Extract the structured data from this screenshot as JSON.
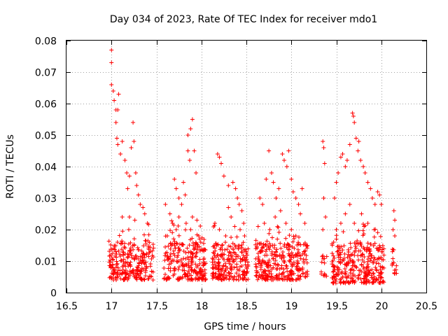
{
  "chart_data": {
    "type": "scatter",
    "title": "Day 034 of 2023, Rate Of TEC Index for receiver mdo1",
    "xlabel": "GPS time / hours",
    "ylabel": "ROTI / TECUs",
    "xlim": [
      16.5,
      20.5
    ],
    "ylim": [
      0,
      0.08
    ],
    "xticks": [
      "16.5",
      "17",
      "17.5",
      "18",
      "18.5",
      "19",
      "19.5",
      "20",
      "20.5"
    ],
    "xtick_values": [
      16.5,
      17,
      17.5,
      18,
      18.5,
      19,
      19.5,
      20,
      20.5
    ],
    "yticks": [
      "0",
      "0.01",
      "0.02",
      "0.03",
      "0.04",
      "0.05",
      "0.06",
      "0.07",
      "0.08"
    ],
    "ytick_values": [
      0,
      0.01,
      0.02,
      0.03,
      0.04,
      0.05,
      0.06,
      0.07,
      0.08
    ],
    "grid": true,
    "marker": "+",
    "color": "#ff0000",
    "series": [
      {
        "name": "ROTI",
        "clusters": [
          {
            "x_range": [
              16.97,
              17.47
            ],
            "baseline": [
              0.004,
              0.016
            ],
            "count": 260,
            "upper": [
              [
                17.0,
                0.077
              ],
              [
                17.0,
                0.073
              ],
              [
                17.0,
                0.066
              ],
              [
                17.02,
                0.064
              ],
              [
                17.03,
                0.061
              ],
              [
                17.05,
                0.058
              ],
              [
                17.07,
                0.058
              ],
              [
                17.05,
                0.054
              ],
              [
                17.08,
                0.063
              ],
              [
                17.06,
                0.049
              ],
              [
                17.07,
                0.047
              ],
              [
                17.1,
                0.044
              ],
              [
                17.12,
                0.048
              ],
              [
                17.15,
                0.042
              ],
              [
                17.17,
                0.038
              ],
              [
                17.2,
                0.037
              ],
              [
                17.18,
                0.033
              ],
              [
                17.22,
                0.046
              ],
              [
                17.24,
                0.054
              ],
              [
                17.25,
                0.048
              ],
              [
                17.27,
                0.038
              ],
              [
                17.28,
                0.034
              ],
              [
                17.3,
                0.031
              ],
              [
                17.32,
                0.028
              ],
              [
                17.35,
                0.027
              ],
              [
                17.37,
                0.025
              ],
              [
                17.4,
                0.022
              ],
              [
                17.12,
                0.024
              ],
              [
                17.2,
                0.024
              ],
              [
                17.26,
                0.023
              ]
            ]
          },
          {
            "x_range": [
              17.58,
              18.05
            ],
            "baseline": [
              0.004,
              0.016
            ],
            "count": 240,
            "upper": [
              [
                17.6,
                0.028
              ],
              [
                17.65,
                0.025
              ],
              [
                17.7,
                0.036
              ],
              [
                17.72,
                0.033
              ],
              [
                17.75,
                0.03
              ],
              [
                17.78,
                0.028
              ],
              [
                17.82,
                0.031
              ],
              [
                17.85,
                0.05
              ],
              [
                17.88,
                0.052
              ],
              [
                17.9,
                0.055
              ],
              [
                17.85,
                0.045
              ],
              [
                17.87,
                0.042
              ],
              [
                17.92,
                0.045
              ],
              [
                17.94,
                0.038
              ],
              [
                17.8,
                0.035
              ],
              [
                17.83,
                0.022
              ],
              [
                17.88,
                0.02
              ],
              [
                17.9,
                0.024
              ],
              [
                17.95,
                0.023
              ],
              [
                17.97,
                0.018
              ],
              [
                17.75,
                0.024
              ],
              [
                17.72,
                0.02
              ],
              [
                17.68,
                0.022
              ],
              [
                17.62,
                0.018
              ],
              [
                17.98,
                0.017
              ]
            ]
          },
          {
            "x_range": [
              18.12,
              18.52
            ],
            "baseline": [
              0.004,
              0.016
            ],
            "count": 220,
            "upper": [
              [
                18.18,
                0.044
              ],
              [
                18.2,
                0.043
              ],
              [
                18.22,
                0.041
              ],
              [
                18.25,
                0.037
              ],
              [
                18.3,
                0.034
              ],
              [
                18.35,
                0.035
              ],
              [
                18.38,
                0.033
              ],
              [
                18.4,
                0.03
              ],
              [
                18.42,
                0.028
              ],
              [
                18.45,
                0.026
              ],
              [
                18.47,
                0.022
              ],
              [
                18.15,
                0.022
              ],
              [
                18.2,
                0.02
              ],
              [
                18.3,
                0.027
              ],
              [
                18.33,
                0.024
              ],
              [
                18.37,
                0.021
              ],
              [
                18.43,
                0.02
              ],
              [
                18.27,
                0.018
              ],
              [
                18.48,
                0.018
              ]
            ]
          },
          {
            "x_range": [
              18.6,
              19.18
            ],
            "baseline": [
              0.004,
              0.016
            ],
            "count": 300,
            "upper": [
              [
                18.65,
                0.03
              ],
              [
                18.68,
                0.028
              ],
              [
                18.72,
                0.036
              ],
              [
                18.75,
                0.045
              ],
              [
                18.78,
                0.038
              ],
              [
                18.8,
                0.035
              ],
              [
                18.83,
                0.03
              ],
              [
                18.86,
                0.033
              ],
              [
                18.9,
                0.044
              ],
              [
                18.92,
                0.042
              ],
              [
                18.95,
                0.04
              ],
              [
                18.97,
                0.045
              ],
              [
                19.0,
                0.036
              ],
              [
                19.02,
                0.032
              ],
              [
                19.05,
                0.03
              ],
              [
                19.08,
                0.028
              ],
              [
                19.1,
                0.025
              ],
              [
                19.12,
                0.033
              ],
              [
                19.15,
                0.022
              ],
              [
                18.7,
                0.022
              ],
              [
                18.76,
                0.02
              ],
              [
                18.82,
                0.024
              ],
              [
                18.88,
                0.026
              ],
              [
                18.94,
                0.022
              ],
              [
                19.0,
                0.02
              ],
              [
                19.05,
                0.018
              ]
            ]
          },
          {
            "x_range": [
              19.33,
              19.4
            ],
            "baseline": [
              0.005,
              0.012
            ],
            "count": 14,
            "upper": [
              [
                19.35,
                0.048
              ],
              [
                19.36,
                0.046
              ],
              [
                19.37,
                0.041
              ],
              [
                19.36,
                0.03
              ],
              [
                19.38,
                0.024
              ],
              [
                19.35,
                0.02
              ]
            ]
          },
          {
            "x_range": [
              19.45,
              20.03
            ],
            "baseline": [
              0.003,
              0.016
            ],
            "count": 320,
            "upper": [
              [
                19.48,
                0.03
              ],
              [
                19.5,
                0.035
              ],
              [
                19.52,
                0.038
              ],
              [
                19.55,
                0.043
              ],
              [
                19.57,
                0.044
              ],
              [
                19.6,
                0.04
              ],
              [
                19.62,
                0.042
              ],
              [
                19.65,
                0.047
              ],
              [
                19.68,
                0.057
              ],
              [
                19.69,
                0.056
              ],
              [
                19.7,
                0.054
              ],
              [
                19.72,
                0.049
              ],
              [
                19.75,
                0.048
              ],
              [
                19.74,
                0.045
              ],
              [
                19.77,
                0.042
              ],
              [
                19.8,
                0.04
              ],
              [
                19.82,
                0.038
              ],
              [
                19.85,
                0.035
              ],
              [
                19.88,
                0.033
              ],
              [
                19.9,
                0.03
              ],
              [
                19.93,
                0.028
              ],
              [
                19.96,
                0.032
              ],
              [
                19.98,
                0.031
              ],
              [
                20.0,
                0.028
              ],
              [
                19.55,
                0.022
              ],
              [
                19.6,
                0.025
              ],
              [
                19.65,
                0.028
              ],
              [
                19.7,
                0.022
              ],
              [
                19.78,
                0.025
              ],
              [
                19.85,
                0.022
              ],
              [
                19.92,
                0.02
              ],
              [
                19.5,
                0.02
              ]
            ]
          },
          {
            "x_range": [
              20.12,
              20.17
            ],
            "baseline": [
              0.006,
              0.014
            ],
            "count": 16,
            "upper": [
              [
                20.14,
                0.026
              ],
              [
                20.15,
                0.023
              ],
              [
                20.13,
                0.02
              ],
              [
                20.15,
                0.018
              ]
            ]
          }
        ]
      }
    ]
  }
}
